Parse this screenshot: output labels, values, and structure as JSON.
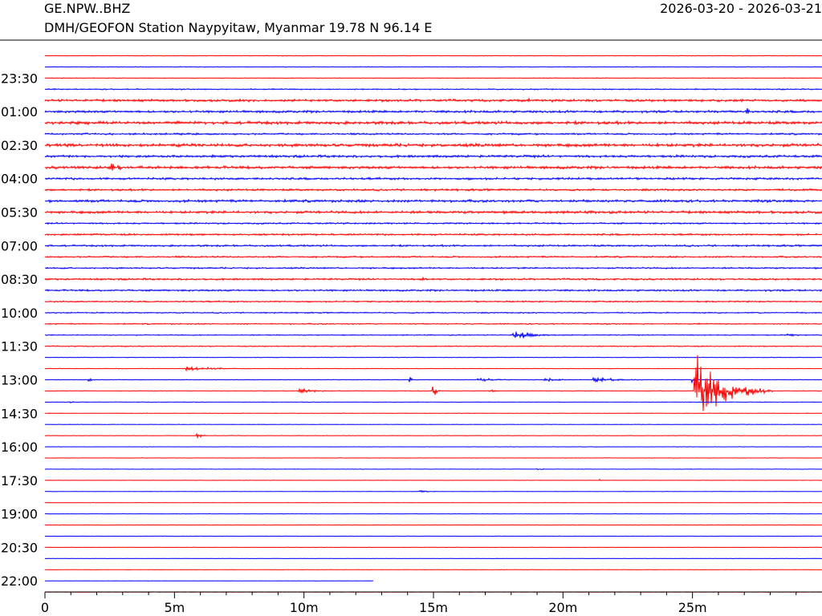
{
  "header": {
    "station_code": "GE.NPW..BHZ",
    "station_description": "DMH/GEOFON Station Naypyitaw, Myanmar  19.78 N 96.14 E",
    "date_range": "2026-03-20 - 2026-03-21"
  },
  "colors": {
    "trace_odd": "#ff0000",
    "trace_even": "#0000ff",
    "axis": "#000000",
    "background": "#ffffff"
  },
  "chart_data": {
    "type": "line",
    "title": "",
    "xlabel": "",
    "ylabel": "",
    "xlim": [
      0,
      30
    ],
    "x_unit": "minutes",
    "x_ticks": [
      {
        "value": 0,
        "label": "0"
      },
      {
        "value": 5,
        "label": "5m"
      },
      {
        "value": 10,
        "label": "10m"
      },
      {
        "value": 15,
        "label": "15m"
      },
      {
        "value": 20,
        "label": "20m"
      },
      {
        "value": 25,
        "label": "25m"
      }
    ],
    "x_minor_tick_step": 1,
    "trace_count": 49,
    "first_trace_color": "trace_odd",
    "y_tick_labels": [
      {
        "trace": 2,
        "label": "23:30"
      },
      {
        "trace": 5,
        "label": "01:00"
      },
      {
        "trace": 8,
        "label": "02:30"
      },
      {
        "trace": 11,
        "label": "04:00"
      },
      {
        "trace": 14,
        "label": "05:30"
      },
      {
        "trace": 17,
        "label": "07:00"
      },
      {
        "trace": 20,
        "label": "08:30"
      },
      {
        "trace": 23,
        "label": "10:00"
      },
      {
        "trace": 26,
        "label": "11:30"
      },
      {
        "trace": 29,
        "label": "13:00"
      },
      {
        "trace": 32,
        "label": "14:30"
      },
      {
        "trace": 35,
        "label": "16:00"
      },
      {
        "trace": 38,
        "label": "17:30"
      },
      {
        "trace": 41,
        "label": "19:00"
      },
      {
        "trace": 44,
        "label": "20:30"
      },
      {
        "trace": 47,
        "label": "22:00"
      }
    ],
    "trace_noise": [
      0.3,
      0.3,
      0.3,
      0.6,
      1.2,
      1.2,
      1.5,
      0.9,
      1.6,
      1.2,
      1.4,
      1.1,
      1.0,
      1.3,
      1.3,
      0.8,
      0.9,
      0.9,
      0.8,
      0.8,
      0.9,
      0.9,
      0.7,
      0.6,
      0.6,
      0.5,
      0.5,
      0.3,
      0.3,
      0.3,
      0.3,
      0.3,
      0.3,
      0.25,
      0.25,
      0.2,
      0.2,
      0.2,
      0.2,
      0.2,
      0.2,
      0.2,
      0.2,
      0.2,
      0.2,
      0.2,
      0.2,
      0.2,
      0.2
    ],
    "trace_end_minute": [
      30,
      30,
      30,
      30,
      30,
      30,
      30,
      30,
      30,
      30,
      30,
      30,
      30,
      30,
      30,
      30,
      30,
      30,
      30,
      30,
      30,
      30,
      30,
      30,
      30,
      30,
      30,
      30,
      30,
      30,
      30,
      30,
      30,
      30,
      30,
      30,
      30,
      30,
      30,
      30,
      30,
      30,
      30,
      30,
      30,
      30,
      30,
      12.7,
      30
    ],
    "events": [
      {
        "trace": 10,
        "minute": 2.5,
        "amplitude": 8,
        "duration": 1.5
      },
      {
        "trace": 5,
        "minute": 27.1,
        "amplitude": 6,
        "duration": 0.5
      },
      {
        "trace": 4,
        "minute": 18.7,
        "amplitude": 3,
        "duration": 0.3
      },
      {
        "trace": 4,
        "minute": 19.6,
        "amplitude": 3,
        "duration": 0.3
      },
      {
        "trace": 20,
        "minute": 14.5,
        "amplitude": 9,
        "duration": 0.4
      },
      {
        "trace": 25,
        "minute": 18.1,
        "amplitude": 8,
        "duration": 2.0
      },
      {
        "trace": 25,
        "minute": 28.7,
        "amplitude": 3,
        "duration": 1.5
      },
      {
        "trace": 28,
        "minute": 5.5,
        "amplitude": 3,
        "duration": 4.0
      },
      {
        "trace": 29,
        "minute": 1.7,
        "amplitude": 4,
        "duration": 0.4
      },
      {
        "trace": 29,
        "minute": 14.1,
        "amplitude": 4,
        "duration": 0.3
      },
      {
        "trace": 29,
        "minute": 16.7,
        "amplitude": 3,
        "duration": 2.5
      },
      {
        "trace": 29,
        "minute": 19.3,
        "amplitude": 4,
        "duration": 1.5
      },
      {
        "trace": 29,
        "minute": 21.2,
        "amplitude": 4,
        "duration": 3.0
      },
      {
        "trace": 29,
        "minute": 25.0,
        "amplitude": 9,
        "duration": 0.3
      },
      {
        "trace": 30,
        "minute": 25.1,
        "amplitude": 56,
        "duration": 3.0
      },
      {
        "trace": 30,
        "minute": 9.8,
        "amplitude": 4,
        "duration": 2.5
      },
      {
        "trace": 30,
        "minute": 15.0,
        "amplitude": 9,
        "duration": 0.4
      },
      {
        "trace": 30,
        "minute": 17.2,
        "amplitude": 3,
        "duration": 0.5
      },
      {
        "trace": 31,
        "minute": 1.0,
        "amplitude": 3,
        "duration": 0.3
      },
      {
        "trace": 34,
        "minute": 5.9,
        "amplitude": 4,
        "duration": 0.6
      },
      {
        "trace": 39,
        "minute": 14.5,
        "amplitude": 2,
        "duration": 1.5
      },
      {
        "trace": 38,
        "minute": 21.4,
        "amplitude": 2,
        "duration": 0.2
      },
      {
        "trace": 37,
        "minute": 19.0,
        "amplitude": 1,
        "duration": 1.0
      }
    ]
  }
}
